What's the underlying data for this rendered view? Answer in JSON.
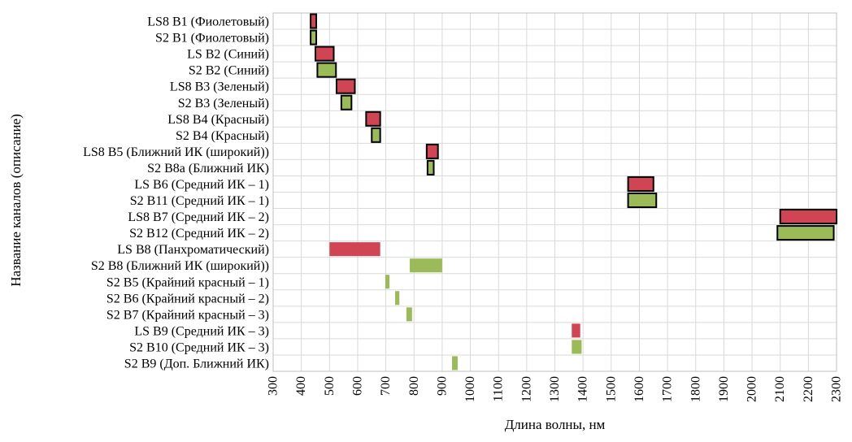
{
  "chart_data": {
    "type": "bar",
    "orientation": "horizontal-range",
    "title": "",
    "xlabel": "Длина волны, нм",
    "ylabel": "Название каналов (описание)",
    "xlim": [
      300,
      2300
    ],
    "xticks": [
      300,
      400,
      500,
      600,
      700,
      800,
      900,
      1000,
      1100,
      1200,
      1300,
      1400,
      1500,
      1600,
      1700,
      1800,
      1900,
      2000,
      2100,
      2200,
      2300
    ],
    "grid": true,
    "legend": "none",
    "colors": {
      "landsat": "#d04454",
      "sentinel": "#9bbb59",
      "outline": "#000000"
    },
    "categories": [
      "LS8 B1 (Фиолетовый)",
      "S2 B1 (Фиолетовый)",
      "LS B2 (Синий)",
      "S2 B2 (Синий)",
      "LS8 B3 (Зеленый)",
      "S2 B3 (Зеленый)",
      "LS8 B4 (Красный)",
      "S2 B4 (Красный)",
      "LS8 B5 (Ближний ИК (широкий))",
      "S2 B8a (Ближний ИК)",
      "LS B6 (Средний ИК – 1)",
      "S2 B11 (Средний ИК – 1)",
      "LS8 B7 (Средний ИК – 2)",
      "S2 B12 (Средний ИК – 2)",
      "LS B8 (Панхроматический)",
      "S2 B8 (Ближний ИК (широкий))",
      "S2 B5 (Крайний красный – 1)",
      "S2 B6 (Крайний красный – 2)",
      "S2 B7 (Крайний красный – 3)",
      "LS B9 (Средний ИК – 3)",
      "S2 B10 (Средний ИК – 3)",
      "S2 B9 (Доп. Ближний ИК)"
    ],
    "ranges": [
      {
        "start": 433,
        "end": 453,
        "color": "landsat",
        "outlined": true
      },
      {
        "start": 433,
        "end": 453,
        "color": "sentinel",
        "outlined": true
      },
      {
        "start": 450,
        "end": 515,
        "color": "landsat",
        "outlined": true
      },
      {
        "start": 457,
        "end": 523,
        "color": "sentinel",
        "outlined": true
      },
      {
        "start": 525,
        "end": 590,
        "color": "landsat",
        "outlined": true
      },
      {
        "start": 542,
        "end": 578,
        "color": "sentinel",
        "outlined": true
      },
      {
        "start": 630,
        "end": 680,
        "color": "landsat",
        "outlined": true
      },
      {
        "start": 650,
        "end": 680,
        "color": "sentinel",
        "outlined": true
      },
      {
        "start": 845,
        "end": 885,
        "color": "landsat",
        "outlined": true
      },
      {
        "start": 848,
        "end": 870,
        "color": "sentinel",
        "outlined": true
      },
      {
        "start": 1560,
        "end": 1650,
        "color": "landsat",
        "outlined": true
      },
      {
        "start": 1560,
        "end": 1660,
        "color": "sentinel",
        "outlined": true
      },
      {
        "start": 2100,
        "end": 2300,
        "color": "landsat",
        "outlined": true
      },
      {
        "start": 2090,
        "end": 2290,
        "color": "sentinel",
        "outlined": true
      },
      {
        "start": 500,
        "end": 680,
        "color": "landsat",
        "outlined": false
      },
      {
        "start": 785,
        "end": 900,
        "color": "sentinel",
        "outlined": false
      },
      {
        "start": 698,
        "end": 713,
        "color": "sentinel",
        "outlined": false
      },
      {
        "start": 733,
        "end": 748,
        "color": "sentinel",
        "outlined": false
      },
      {
        "start": 773,
        "end": 793,
        "color": "sentinel",
        "outlined": false
      },
      {
        "start": 1360,
        "end": 1390,
        "color": "landsat",
        "outlined": false
      },
      {
        "start": 1360,
        "end": 1395,
        "color": "sentinel",
        "outlined": false
      },
      {
        "start": 935,
        "end": 955,
        "color": "sentinel",
        "outlined": false
      }
    ]
  }
}
